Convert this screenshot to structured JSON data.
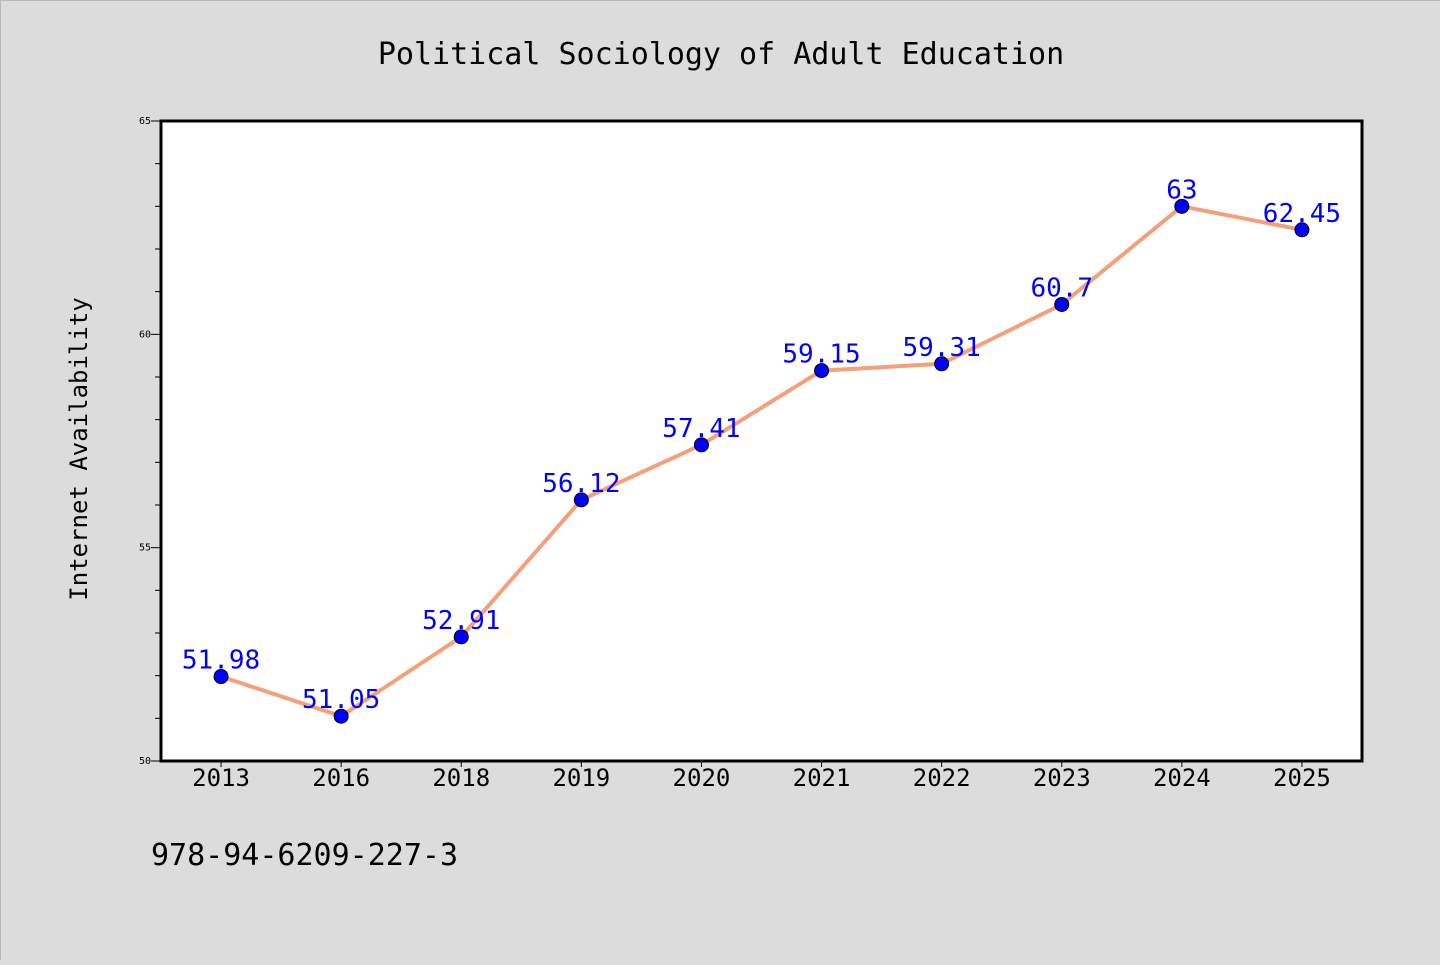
{
  "chart_data": {
    "type": "line",
    "title": "Political Sociology of Adult Education",
    "xlabel": "",
    "ylabel": "Internet Availability",
    "categories": [
      "2013",
      "2016",
      "2018",
      "2019",
      "2020",
      "2021",
      "2022",
      "2023",
      "2024",
      "2025"
    ],
    "series": [
      {
        "values": [
          51.98,
          51.05,
          52.91,
          56.12,
          57.41,
          59.15,
          59.31,
          60.7,
          63,
          62.45
        ],
        "labels": [
          "51.98",
          "51.05",
          "52.91",
          "56.12",
          "57.41",
          "59.15",
          "59.31",
          "60.7",
          "63",
          "62.45"
        ],
        "line_color": "#f4a07a",
        "marker_color": "#0000ff",
        "label_color": "#0000ff"
      }
    ],
    "ylim": [
      50,
      65
    ],
    "y_ticks": [
      "50",
      "55",
      "60",
      "65"
    ],
    "grid": false,
    "legend": "none"
  },
  "footer_text": "978-94-6209-227-3",
  "colors": {
    "figure_background": "#dcdcdc",
    "plot_background": "#ffffff",
    "axes": "#000000"
  }
}
